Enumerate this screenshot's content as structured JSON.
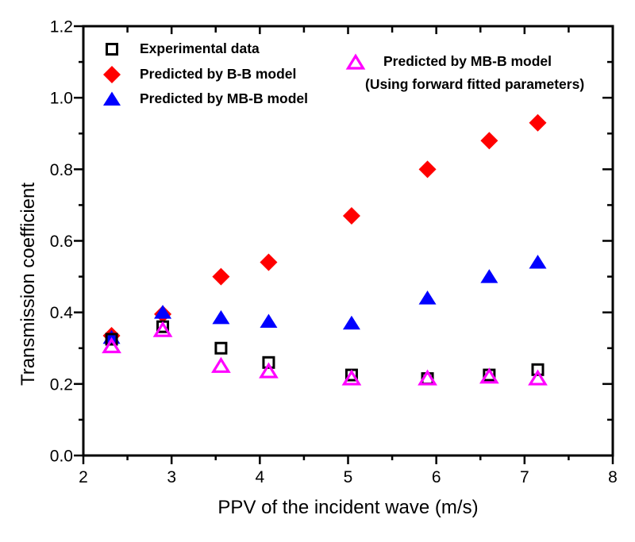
{
  "figure": {
    "background": "#ffffff"
  },
  "chart_data": {
    "type": "scatter",
    "title": "",
    "xlabel": "PPV of the incident wave (m/s)",
    "ylabel": "Transmission coefficient",
    "xlim": [
      2,
      8
    ],
    "ylim": [
      0.0,
      1.2
    ],
    "x_ticks": [
      2,
      3,
      4,
      5,
      6,
      7,
      8
    ],
    "x_tick_labels": [
      "2",
      "3",
      "4",
      "5",
      "6",
      "7",
      "8"
    ],
    "y_ticks": [
      0.0,
      0.2,
      0.4,
      0.6,
      0.8,
      1.0,
      1.2
    ],
    "y_tick_labels": [
      "0.0",
      "0.2",
      "0.4",
      "0.6",
      "0.8",
      "1.0",
      "1.2"
    ],
    "x_minor_step": 0.5,
    "y_minor_step": 0.1,
    "grid": false,
    "legend_position": "top-inside",
    "axis_color": "#000000",
    "x": [
      2.32,
      2.9,
      3.56,
      4.1,
      5.04,
      5.9,
      6.6,
      7.15
    ],
    "series": [
      {
        "name": "Experimental data",
        "marker": "open-square",
        "color": "#000000",
        "values": [
          0.325,
          0.36,
          0.3,
          0.26,
          0.225,
          0.215,
          0.225,
          0.24
        ]
      },
      {
        "name": "Predicted by B-B model",
        "marker": "filled-diamond",
        "color": "#ff0000",
        "values": [
          0.335,
          0.395,
          0.5,
          0.54,
          0.67,
          0.8,
          0.88,
          0.93
        ]
      },
      {
        "name": "Predicted by MB-B model",
        "marker": "filled-triangle",
        "color": "#0000ff",
        "values": [
          0.33,
          0.4,
          0.385,
          0.375,
          0.37,
          0.44,
          0.5,
          0.54
        ]
      },
      {
        "name": "Predicted by MB-B model (Using forward fitted parameters)",
        "marker": "open-triangle",
        "color": "#ff00ff",
        "values": [
          0.305,
          0.35,
          0.25,
          0.235,
          0.215,
          0.215,
          0.22,
          0.215
        ]
      }
    ],
    "draw_order": [
      1,
      2,
      0,
      3
    ]
  },
  "legend": {
    "left_items": [
      {
        "label": "Experimental data"
      },
      {
        "label": "Predicted by B-B model"
      },
      {
        "label": "Predicted by MB-B model"
      }
    ],
    "right_item": {
      "line1": "Predicted by MB-B model",
      "line2": "(Using forward fitted parameters)"
    }
  }
}
